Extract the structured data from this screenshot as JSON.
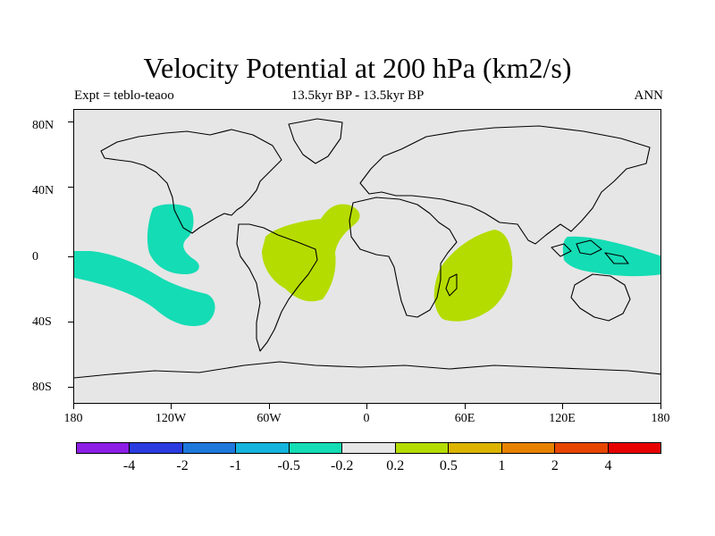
{
  "title": "Velocity Potential at 200 hPa (km2/s)",
  "experiment": "Expt = teblo-teaoo",
  "period": "13.5kyr BP - 13.5kyr BP",
  "season": "ANN",
  "lat_labels": [
    "80N",
    "40N",
    "0",
    "40S",
    "80S"
  ],
  "lon_labels": [
    "180",
    "120W",
    "60W",
    "0",
    "60E",
    "120E",
    "180"
  ],
  "colorbar": {
    "colors": [
      "#8c1ee6",
      "#2a3ce0",
      "#1e78dc",
      "#14b4dc",
      "#14dcb4",
      "#e6e6e6",
      "#b4dc00",
      "#dcb400",
      "#e68200",
      "#e64600",
      "#e60000"
    ],
    "labels": [
      "-4",
      "-2",
      "-1",
      "-0.5",
      "-0.2",
      "0.2",
      "0.5",
      "1",
      "2",
      "4"
    ]
  },
  "colors": {
    "negative_fill": "#14dcb4",
    "positive_fill": "#b4dc00",
    "land_background": "#e6e6e6"
  }
}
